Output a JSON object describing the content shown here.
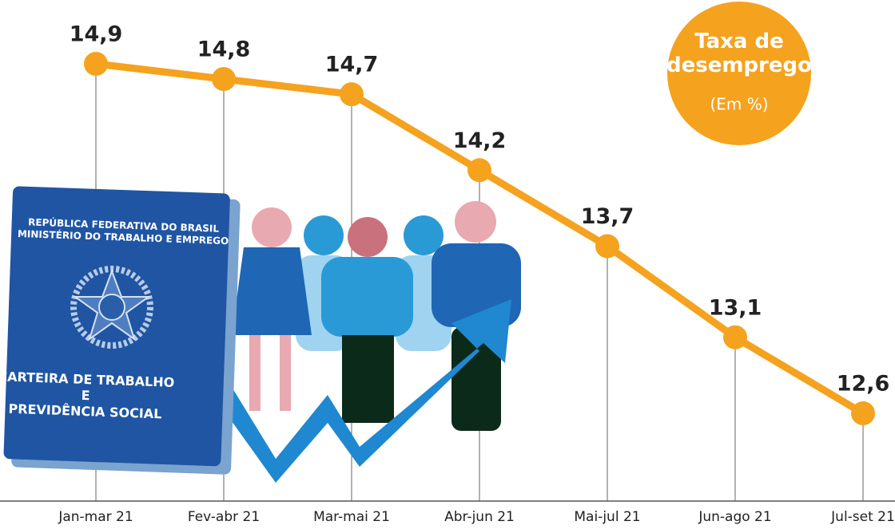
{
  "chart_data": {
    "type": "line",
    "title": "Taxa de desemprego",
    "subtitle": "(Em %)",
    "categories": [
      "Jan-mar 21",
      "Fev-abr 21",
      "Mar-mai 21",
      "Abr-jun 21",
      "Mai-jul 21",
      "Jun-ago 21",
      "Jul-set 21"
    ],
    "values": [
      14.9,
      14.8,
      14.7,
      14.2,
      13.7,
      13.1,
      12.6
    ],
    "value_labels": [
      "14,9",
      "14,8",
      "14,7",
      "14,2",
      "13,7",
      "13,1",
      "12,6"
    ],
    "color": "#f5a21f",
    "annotations": [
      "REPÚBLICA FEDERATIVA DO BRASIL",
      "MINISTÉRIO DO TRABALHO E EMPREGO",
      "CARTEIRA DE TRABALHO",
      "E",
      "PREVIDÊNCIA SOCIAL"
    ]
  }
}
